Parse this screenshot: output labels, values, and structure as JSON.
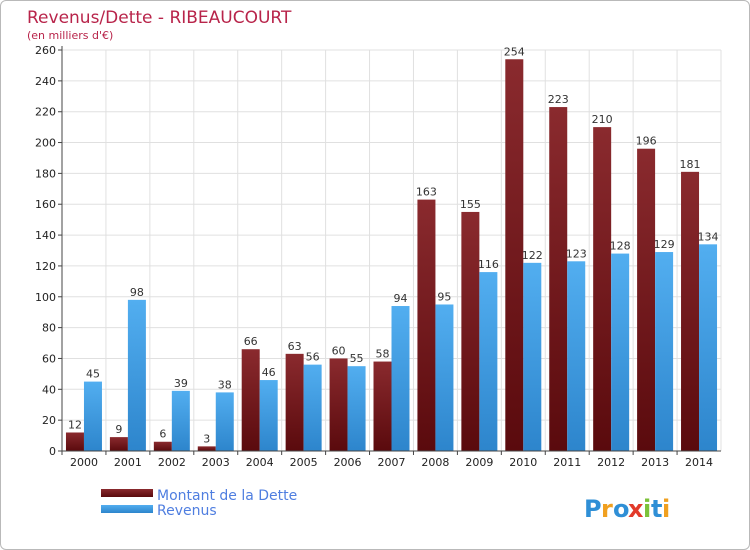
{
  "chart_data": {
    "type": "bar",
    "title": "Revenus/Dette - RIBEAUCOURT",
    "subtitle": "(en milliers d'€)",
    "xlabel": "",
    "ylabel": "",
    "categories": [
      "2000",
      "2001",
      "2002",
      "2003",
      "2004",
      "2005",
      "2006",
      "2007",
      "2008",
      "2009",
      "2010",
      "2011",
      "2012",
      "2013",
      "2014"
    ],
    "series": [
      {
        "name": "Montant de la Dette",
        "color": "#6b0f12",
        "values": [
          12,
          9,
          6,
          3,
          66,
          63,
          60,
          58,
          163,
          155,
          254,
          223,
          210,
          196,
          181
        ]
      },
      {
        "name": "Revenus",
        "color": "#3d9be0",
        "values": [
          45,
          98,
          39,
          38,
          46,
          56,
          55,
          94,
          95,
          116,
          122,
          123,
          128,
          129,
          134
        ]
      }
    ],
    "ylim": [
      0,
      260
    ],
    "yticks": [
      0,
      20,
      40,
      60,
      80,
      100,
      120,
      140,
      160,
      180,
      200,
      220,
      240,
      260
    ],
    "grid": true,
    "legend": "bottom-left"
  },
  "branding": {
    "logo_text": "Proxiti",
    "logo_letters": [
      {
        "ch": "P",
        "color": "#2f8fd6"
      },
      {
        "ch": "r",
        "color": "#f0a020"
      },
      {
        "ch": "o",
        "color": "#2f8fd6"
      },
      {
        "ch": "x",
        "color": "#e23a2a"
      },
      {
        "ch": "i",
        "color": "#7cc23a"
      },
      {
        "ch": "t",
        "color": "#2f8fd6"
      },
      {
        "ch": "i",
        "color": "#f0a020"
      }
    ]
  },
  "colors": {
    "title": "#b8244a",
    "legend_text": "#4f7ee0",
    "grid": "#e0e0e0",
    "axis_text": "#222222",
    "label_text": "#333333"
  }
}
